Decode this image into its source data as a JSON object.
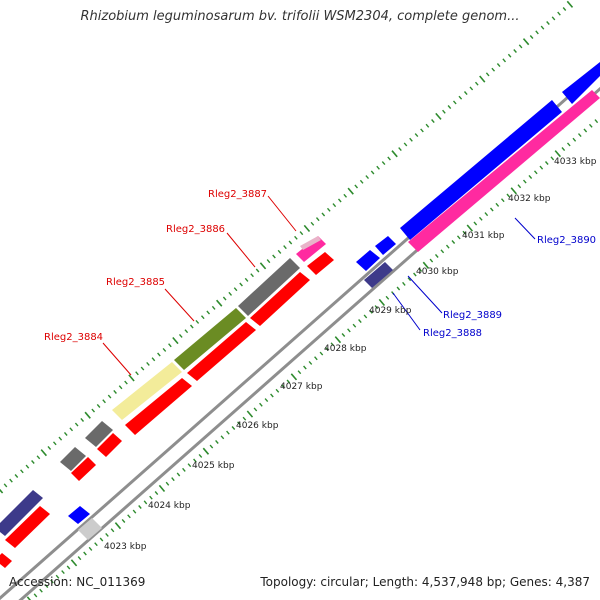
{
  "header": {
    "title": "Rhizobium leguminosarum bv. trifolii WSM2304, complete genom..."
  },
  "footer": {
    "accession": "Accession: NC_011369",
    "summary": "Topology: circular; Length: 4,537,948 bp; Genes: 4,387"
  },
  "map": {
    "colors": {
      "backbone": "#8e8e8e",
      "tick": "#2e8b2e",
      "forward_gene": "#ff0000",
      "reverse_gene": "#0000ff",
      "pink_gene": "#ff2aa0",
      "navy_gene": "#3d3a8a",
      "gray_gene": "#6a6a6a",
      "olive_gene": "#6b8c23",
      "pale_gene": "#f3ec9a",
      "label_red": "#dd0000",
      "label_blue": "#0000cc"
    },
    "tick_labels": [
      "4023 kbp",
      "4024 kbp",
      "4025 kbp",
      "4026 kbp",
      "4027 kbp",
      "4028 kbp",
      "4029 kbp",
      "4030 kbp",
      "4031 kbp",
      "4032 kbp",
      "4033 kbp"
    ],
    "gene_labels": [
      "Rleg2_3884",
      "Rleg2_3885",
      "Rleg2_3886",
      "Rleg2_3887",
      "Rleg2_3888",
      "Rleg2_3889",
      "Rleg2_3890"
    ]
  }
}
